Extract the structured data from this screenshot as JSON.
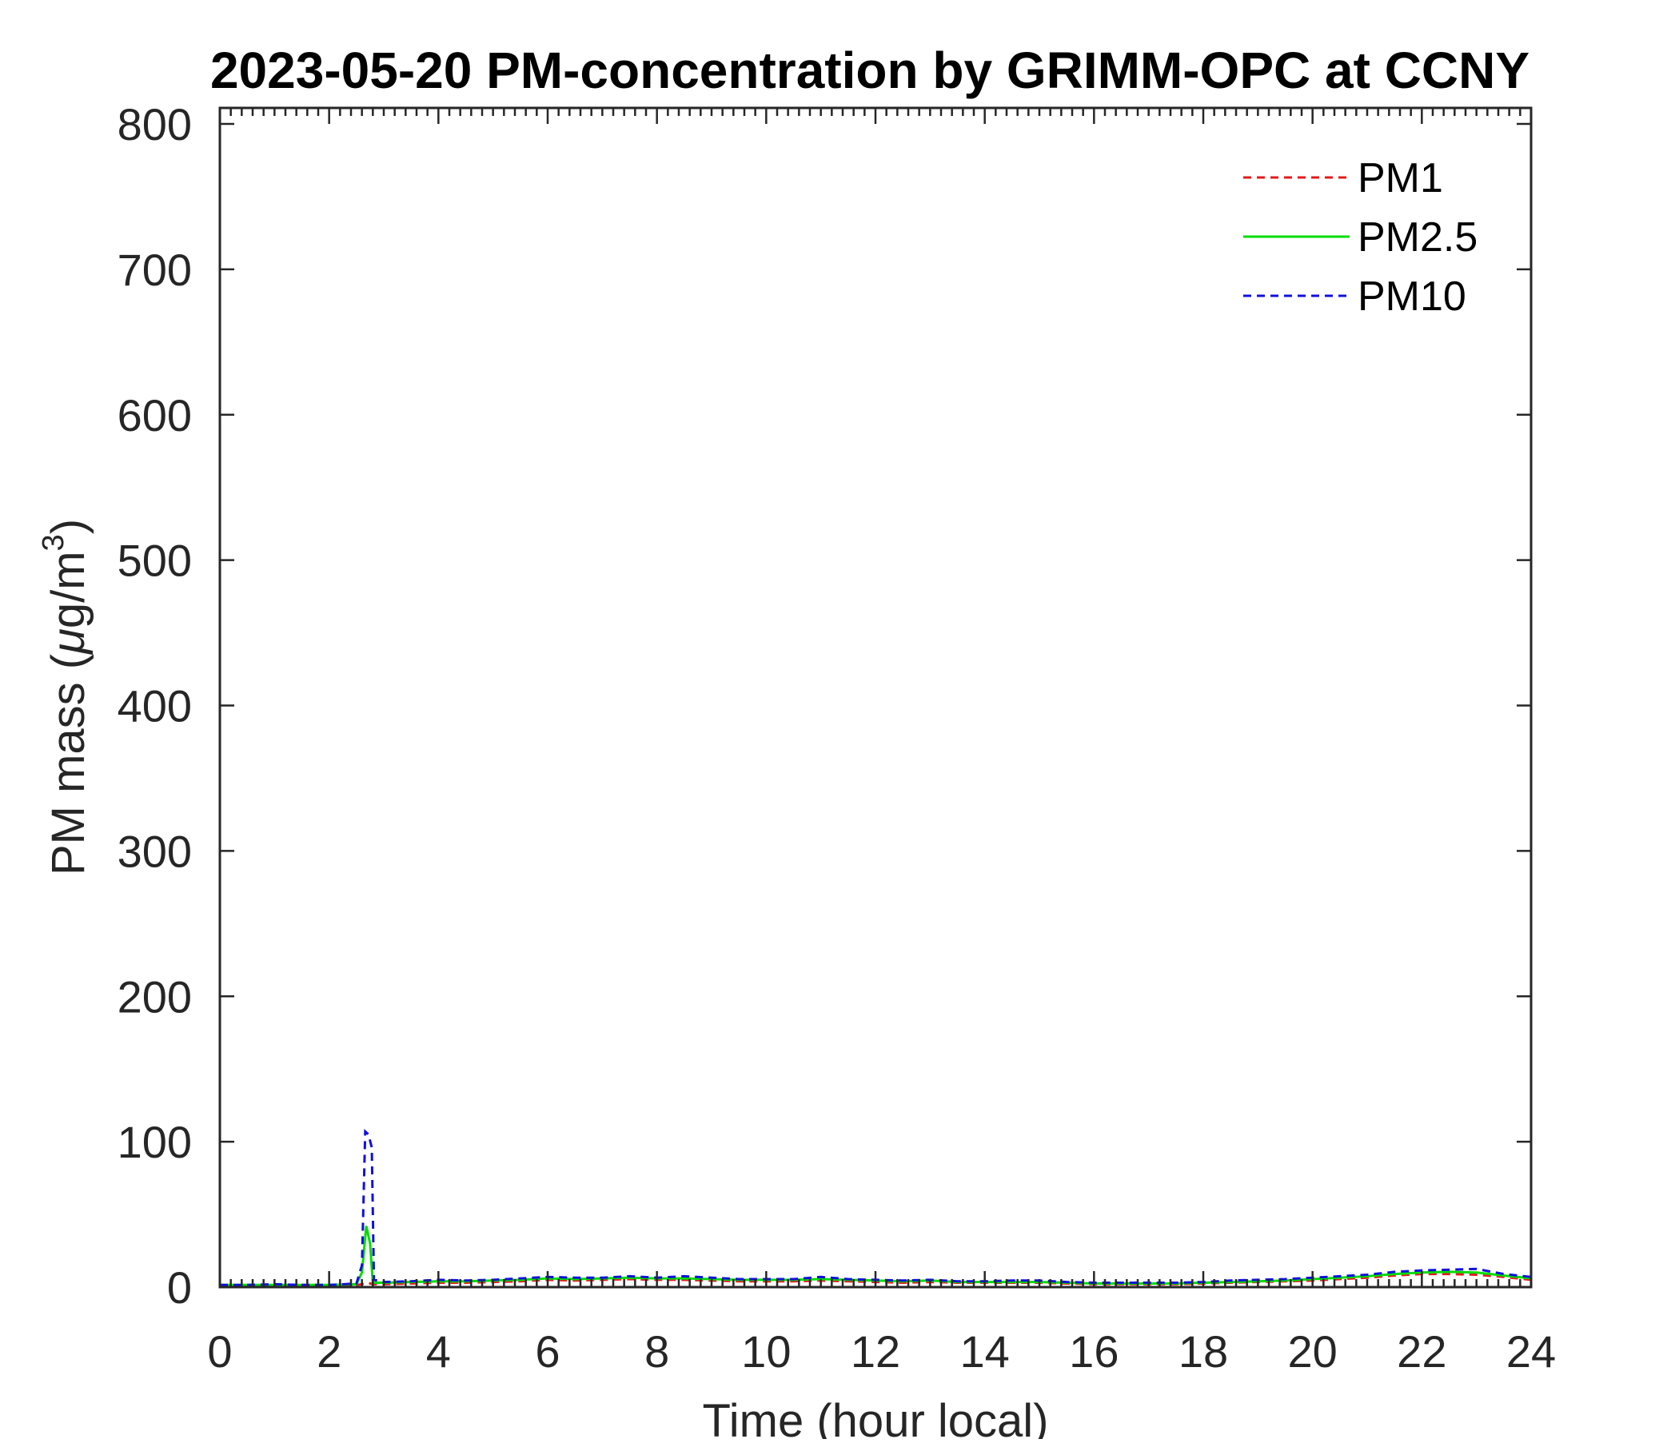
{
  "chart_data": {
    "type": "line",
    "title": "2023-05-20 PM-concentration by GRIMM-OPC at CCNY",
    "xlabel": "Time (hour local)",
    "ylabel": {
      "main": "PM mass (",
      "mu": "μ",
      "unit": "g/m",
      "sup": "3",
      "close": ")"
    },
    "xlim": [
      0,
      24
    ],
    "ylim": [
      0,
      800
    ],
    "x_ticks": [
      0,
      2,
      4,
      6,
      8,
      10,
      12,
      14,
      16,
      18,
      20,
      22,
      24
    ],
    "y_ticks": [
      0,
      100,
      200,
      300,
      400,
      500,
      600,
      700,
      800
    ],
    "grid": false,
    "legend_position": "top-right",
    "series": [
      {
        "name": "PM1",
        "color": "#e41a1c",
        "dash": "dashed",
        "points": [
          [
            0,
            1
          ],
          [
            0.5,
            1
          ],
          [
            1,
            1
          ],
          [
            1.5,
            1
          ],
          [
            2,
            1
          ],
          [
            2.5,
            1.5
          ],
          [
            2.6,
            2
          ],
          [
            2.7,
            3
          ],
          [
            2.8,
            2
          ],
          [
            3,
            2
          ],
          [
            3.5,
            2.5
          ],
          [
            4,
            3
          ],
          [
            4.5,
            3
          ],
          [
            5,
            3.5
          ],
          [
            5.5,
            4
          ],
          [
            6,
            5
          ],
          [
            6.5,
            4.5
          ],
          [
            7,
            5
          ],
          [
            7.5,
            5.5
          ],
          [
            8,
            5
          ],
          [
            8.5,
            5
          ],
          [
            9,
            4.5
          ],
          [
            9.5,
            4
          ],
          [
            10,
            4
          ],
          [
            10.5,
            4
          ],
          [
            11,
            4.5
          ],
          [
            11.5,
            4
          ],
          [
            12,
            3.5
          ],
          [
            12.5,
            3
          ],
          [
            13,
            3.5
          ],
          [
            13.5,
            3
          ],
          [
            14,
            3
          ],
          [
            14.5,
            3
          ],
          [
            15,
            3
          ],
          [
            15.5,
            2.5
          ],
          [
            16,
            2
          ],
          [
            16.5,
            2
          ],
          [
            17,
            2
          ],
          [
            17.5,
            2
          ],
          [
            18,
            2.5
          ],
          [
            18.5,
            3
          ],
          [
            19,
            3.5
          ],
          [
            19.5,
            4
          ],
          [
            20,
            4.5
          ],
          [
            20.5,
            5.5
          ],
          [
            21,
            6.5
          ],
          [
            21.5,
            8
          ],
          [
            22,
            9
          ],
          [
            22.5,
            9
          ],
          [
            23,
            8.5
          ],
          [
            23.5,
            7
          ],
          [
            24,
            5
          ]
        ]
      },
      {
        "name": "PM2.5",
        "color": "#00dd00",
        "dash": "solid",
        "points": [
          [
            0,
            1.5
          ],
          [
            0.5,
            1.5
          ],
          [
            1,
            1.5
          ],
          [
            1.5,
            1.5
          ],
          [
            2,
            1.5
          ],
          [
            2.5,
            2
          ],
          [
            2.6,
            10
          ],
          [
            2.68,
            42
          ],
          [
            2.75,
            30
          ],
          [
            2.8,
            3
          ],
          [
            3,
            3
          ],
          [
            3.5,
            3.5
          ],
          [
            4,
            4
          ],
          [
            4.5,
            4
          ],
          [
            5,
            4.5
          ],
          [
            5.5,
            5
          ],
          [
            6,
            6
          ],
          [
            6.5,
            5.5
          ],
          [
            7,
            6
          ],
          [
            7.5,
            6.5
          ],
          [
            8,
            6
          ],
          [
            8.5,
            6
          ],
          [
            9,
            5.5
          ],
          [
            9.5,
            5
          ],
          [
            10,
            5
          ],
          [
            10.5,
            5
          ],
          [
            11,
            5.5
          ],
          [
            11.5,
            5
          ],
          [
            12,
            4.5
          ],
          [
            12.5,
            4
          ],
          [
            13,
            4.5
          ],
          [
            13.5,
            3.5
          ],
          [
            14,
            3.5
          ],
          [
            14.5,
            3.5
          ],
          [
            15,
            3.5
          ],
          [
            15.5,
            3
          ],
          [
            16,
            2.5
          ],
          [
            16.5,
            2.5
          ],
          [
            17,
            2.5
          ],
          [
            17.5,
            2.5
          ],
          [
            18,
            3
          ],
          [
            18.5,
            3.5
          ],
          [
            19,
            4
          ],
          [
            19.5,
            4.5
          ],
          [
            20,
            5.5
          ],
          [
            20.5,
            6.5
          ],
          [
            21,
            7.5
          ],
          [
            21.5,
            9
          ],
          [
            22,
            10
          ],
          [
            22.5,
            10.5
          ],
          [
            23,
            10
          ],
          [
            23.5,
            8
          ],
          [
            24,
            6
          ]
        ]
      },
      {
        "name": "PM10",
        "color": "#1010dd",
        "dash": "dashed",
        "points": [
          [
            0,
            1.5
          ],
          [
            0.5,
            1.5
          ],
          [
            1,
            2
          ],
          [
            1.5,
            1.5
          ],
          [
            2,
            1.5
          ],
          [
            2.5,
            2.5
          ],
          [
            2.6,
            15
          ],
          [
            2.66,
            107
          ],
          [
            2.72,
            105
          ],
          [
            2.78,
            96
          ],
          [
            2.82,
            5
          ],
          [
            3,
            3.5
          ],
          [
            3.5,
            4
          ],
          [
            4,
            5
          ],
          [
            4.5,
            4.5
          ],
          [
            5,
            5
          ],
          [
            5.5,
            6
          ],
          [
            6,
            7
          ],
          [
            6.5,
            6.5
          ],
          [
            7,
            6.5
          ],
          [
            7.5,
            7.5
          ],
          [
            8,
            6.5
          ],
          [
            8.5,
            7.5
          ],
          [
            9,
            6.5
          ],
          [
            9.5,
            5.5
          ],
          [
            10,
            5.5
          ],
          [
            10.5,
            5.5
          ],
          [
            11,
            7
          ],
          [
            11.5,
            5.5
          ],
          [
            12,
            5
          ],
          [
            12.5,
            4.5
          ],
          [
            13,
            5
          ],
          [
            13.5,
            4
          ],
          [
            14,
            4
          ],
          [
            14.5,
            4.5
          ],
          [
            15,
            4.5
          ],
          [
            15.5,
            3.5
          ],
          [
            16,
            3
          ],
          [
            16.5,
            3
          ],
          [
            17,
            3
          ],
          [
            17.5,
            3
          ],
          [
            18,
            3.5
          ],
          [
            18.5,
            4.5
          ],
          [
            19,
            5
          ],
          [
            19.5,
            5.5
          ],
          [
            20,
            6.5
          ],
          [
            20.5,
            7.5
          ],
          [
            21,
            8.5
          ],
          [
            21.5,
            10.5
          ],
          [
            22,
            11.5
          ],
          [
            22.5,
            12
          ],
          [
            23,
            12.5
          ],
          [
            23.5,
            9
          ],
          [
            24,
            7
          ]
        ]
      }
    ]
  }
}
